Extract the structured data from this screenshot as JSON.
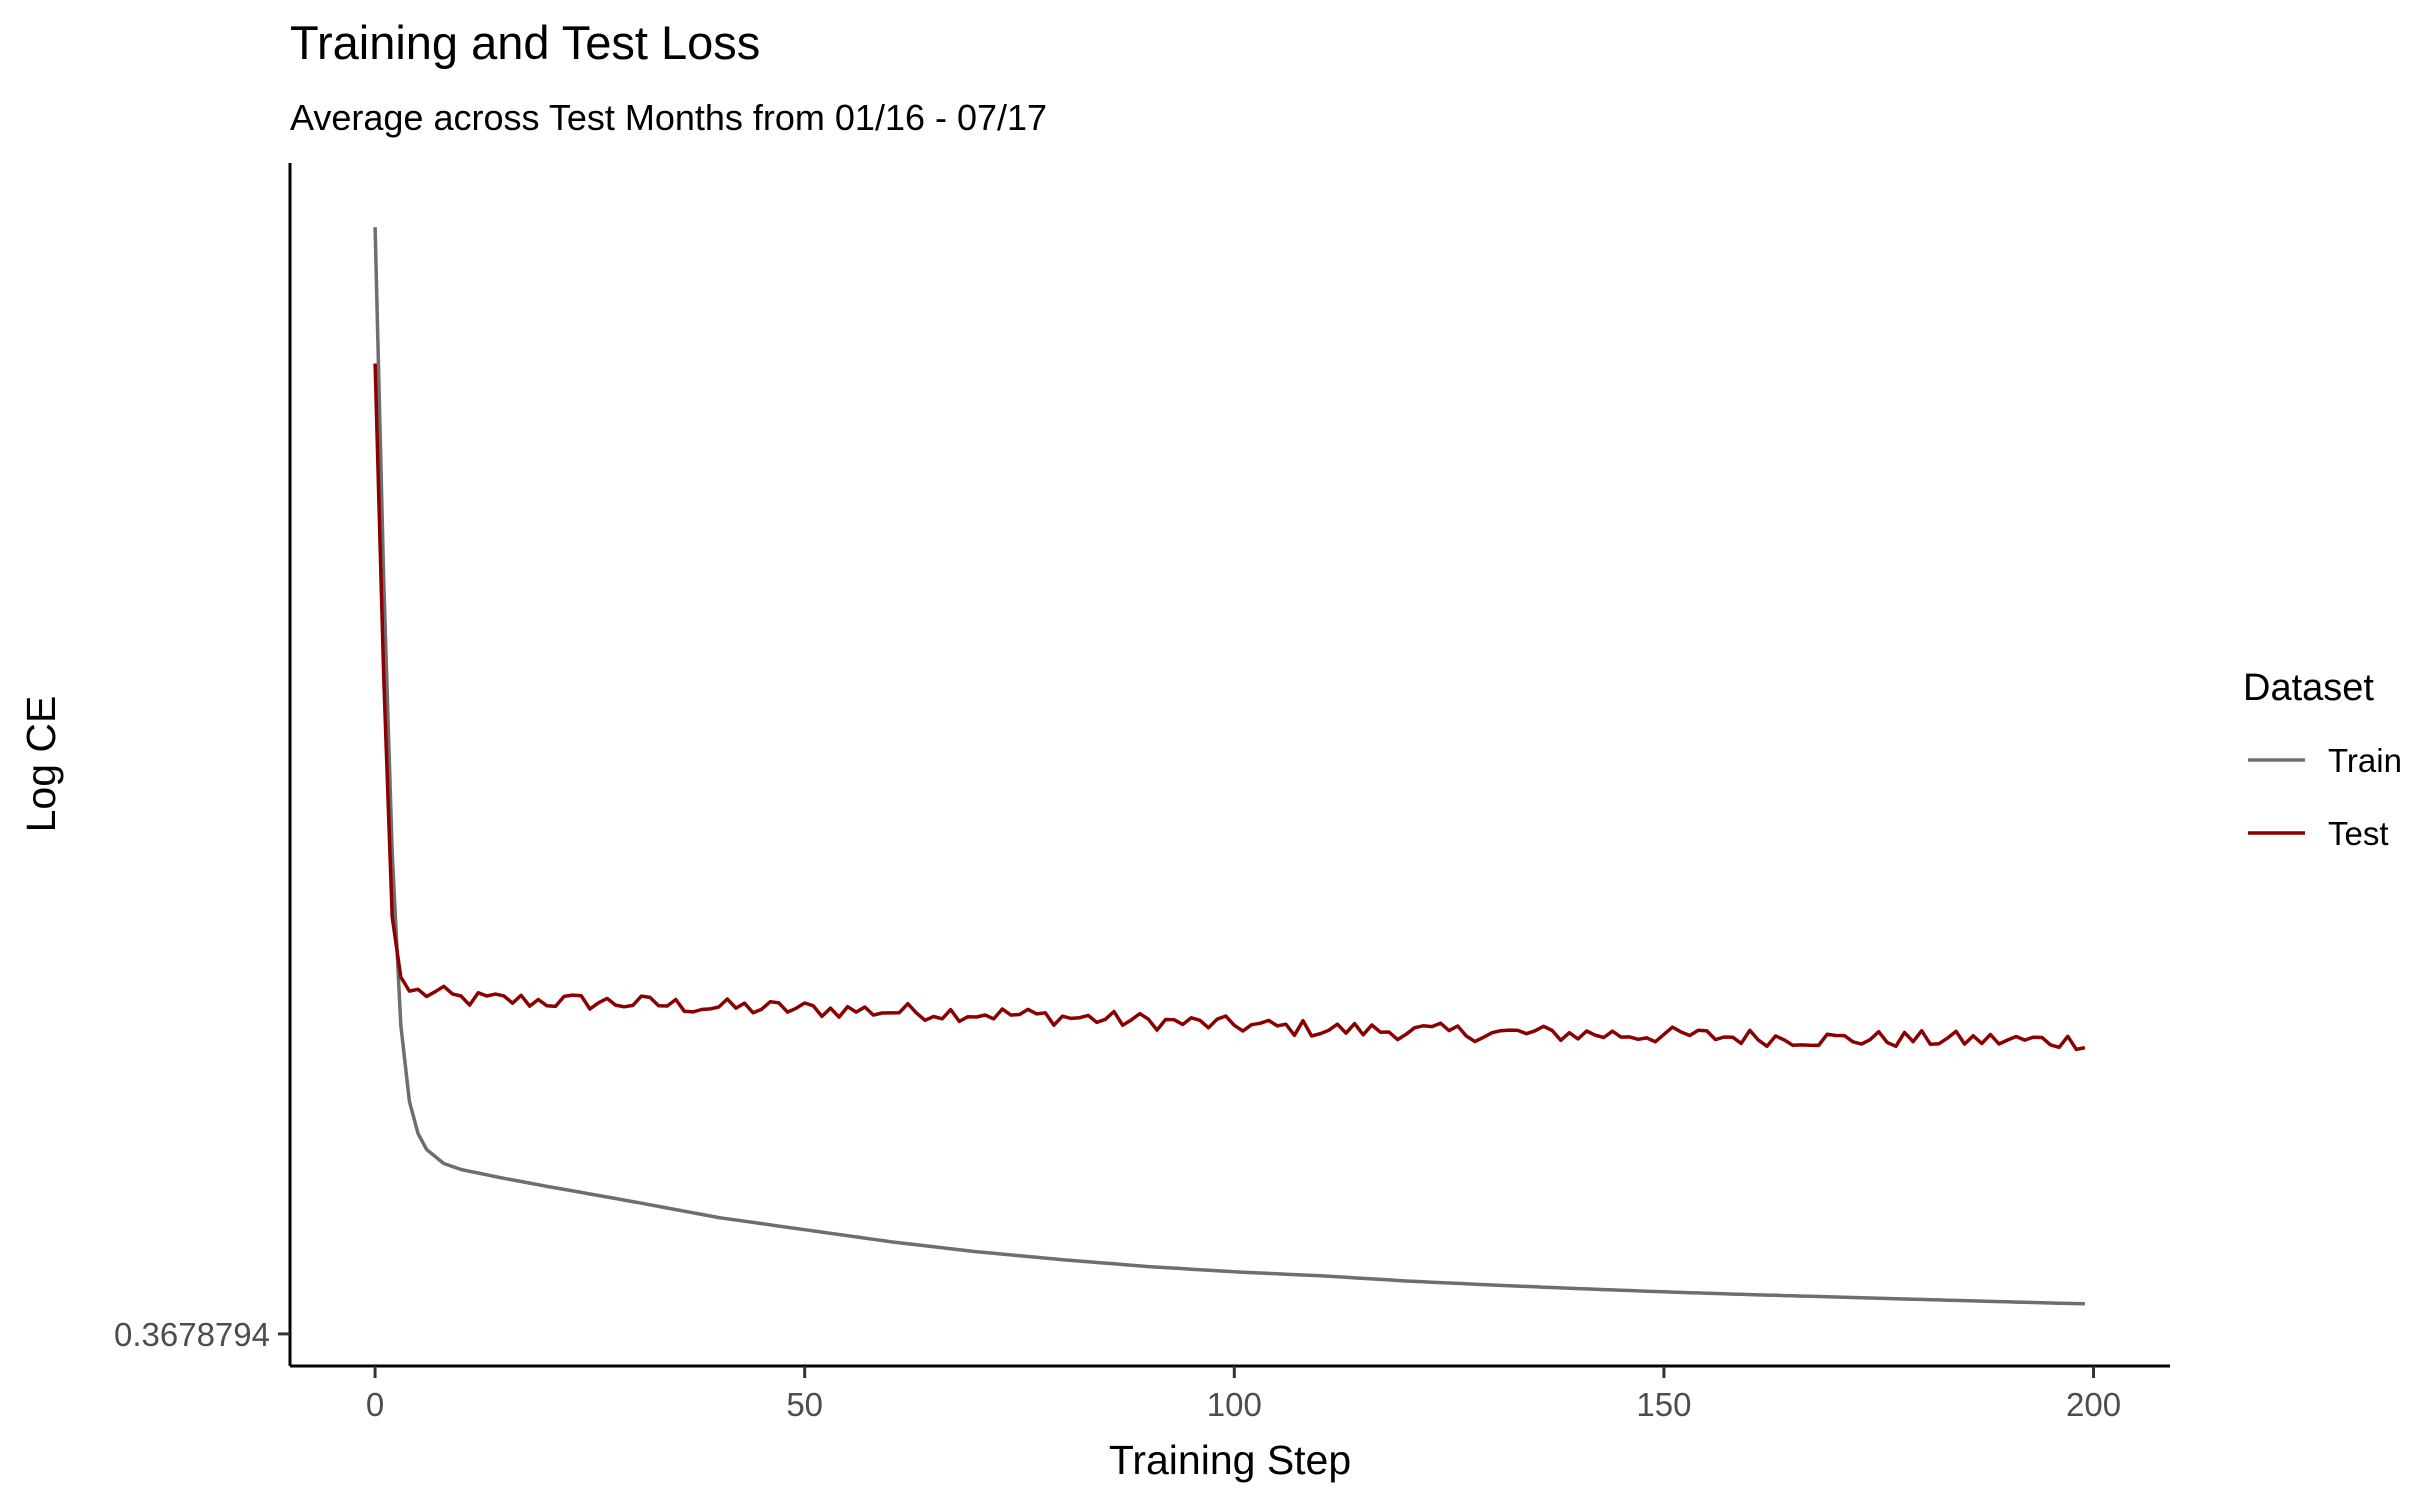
{
  "chart_data": {
    "type": "line",
    "title": "Training and Test Loss",
    "subtitle": "Average across Test Months from 01/16 - 07/17",
    "xlabel": "Training Step",
    "ylabel": "Log CE",
    "x_ticks": [
      0,
      50,
      100,
      150,
      200
    ],
    "xlim": [
      -9.9,
      208.9
    ],
    "y_scale": "log",
    "y_ticks": [
      {
        "value": 0.3678794,
        "label": "0.3678794"
      }
    ],
    "log_ylim": [
      -1.08,
      1.92
    ],
    "grid": false,
    "legend": {
      "title": "Dataset",
      "position": "right"
    },
    "series": [
      {
        "name": "Train",
        "color": "#6e6e6e",
        "log_anchors": [
          [
            0,
            1.76
          ],
          [
            1,
            0.88
          ],
          [
            2,
            0.2
          ],
          [
            3,
            -0.23
          ],
          [
            4,
            -0.42
          ],
          [
            5,
            -0.5
          ],
          [
            6,
            -0.54
          ],
          [
            8,
            -0.575
          ],
          [
            10,
            -0.59
          ],
          [
            15,
            -0.612
          ],
          [
            20,
            -0.632
          ],
          [
            30,
            -0.67
          ],
          [
            40,
            -0.71
          ],
          [
            50,
            -0.74
          ],
          [
            60,
            -0.77
          ],
          [
            70,
            -0.795
          ],
          [
            80,
            -0.815
          ],
          [
            90,
            -0.832
          ],
          [
            100,
            -0.845
          ],
          [
            110,
            -0.855
          ],
          [
            120,
            -0.868
          ],
          [
            130,
            -0.878
          ],
          [
            140,
            -0.887
          ],
          [
            150,
            -0.895
          ],
          [
            160,
            -0.902
          ],
          [
            170,
            -0.908
          ],
          [
            180,
            -0.914
          ],
          [
            190,
            -0.92
          ],
          [
            199,
            -0.925
          ]
        ]
      },
      {
        "name": "Test",
        "color": "#8b0000",
        "log_anchors": [
          [
            0,
            1.42
          ],
          [
            1,
            0.64
          ],
          [
            2,
            0.04
          ],
          [
            3,
            -0.11
          ],
          [
            4,
            -0.145
          ],
          [
            6,
            -0.15
          ],
          [
            8,
            -0.155
          ],
          [
            10,
            -0.165
          ],
          [
            20,
            -0.17
          ],
          [
            30,
            -0.175
          ],
          [
            40,
            -0.185
          ],
          [
            50,
            -0.19
          ],
          [
            60,
            -0.195
          ],
          [
            70,
            -0.2
          ],
          [
            80,
            -0.21
          ],
          [
            90,
            -0.22
          ],
          [
            100,
            -0.23
          ],
          [
            110,
            -0.24
          ],
          [
            120,
            -0.245
          ],
          [
            130,
            -0.25
          ],
          [
            140,
            -0.252
          ],
          [
            150,
            -0.255
          ],
          [
            160,
            -0.26
          ],
          [
            170,
            -0.265
          ],
          [
            180,
            -0.265
          ],
          [
            190,
            -0.268
          ],
          [
            199,
            -0.27
          ]
        ],
        "noise_amplitude": 0.022
      }
    ]
  }
}
